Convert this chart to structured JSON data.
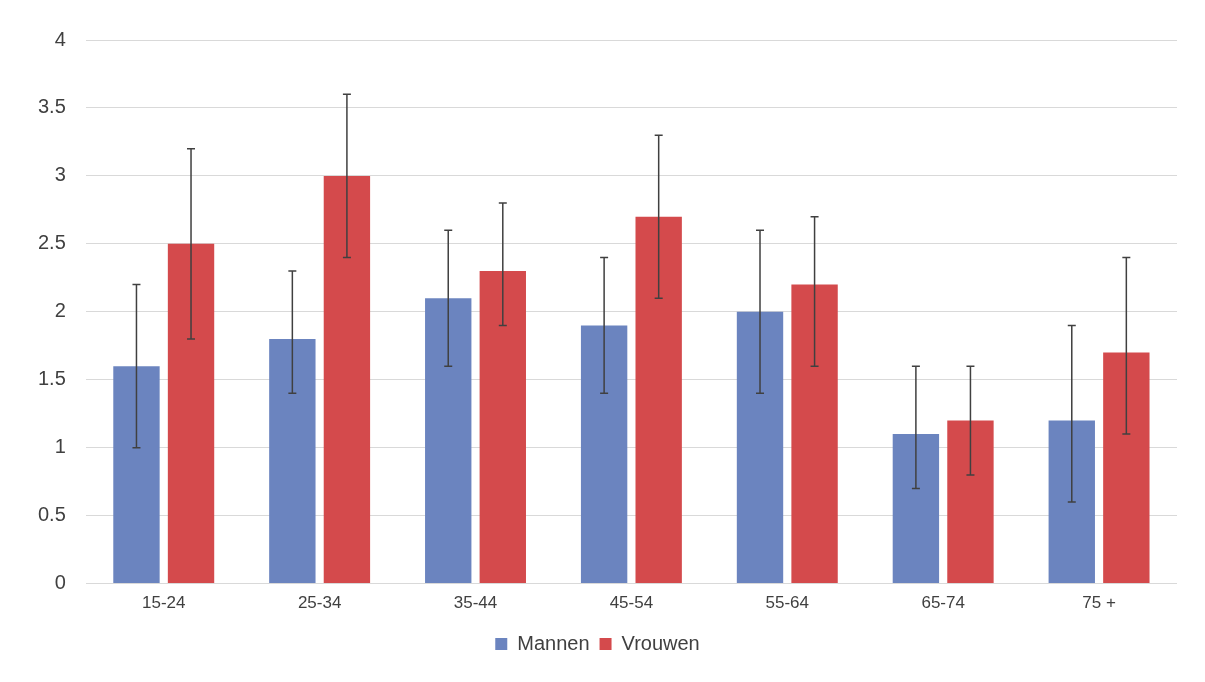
{
  "chart_data": {
    "type": "bar",
    "categories": [
      "15-24",
      "25-34",
      "35-44",
      "45-54",
      "55-64",
      "65-74",
      "75 +"
    ],
    "series": [
      {
        "name": "Mannen",
        "color": "#6b84bf",
        "values": [
          1.6,
          1.8,
          2.1,
          1.9,
          2.0,
          1.1,
          1.2
        ],
        "errors": [
          [
            1.0,
            2.2
          ],
          [
            1.4,
            2.3
          ],
          [
            1.6,
            2.6
          ],
          [
            1.4,
            2.4
          ],
          [
            1.4,
            2.6
          ],
          [
            0.7,
            1.6
          ],
          [
            0.6,
            1.9
          ]
        ]
      },
      {
        "name": "Vrouwen",
        "color": "#d44a4c",
        "values": [
          2.5,
          3.0,
          2.3,
          2.7,
          2.2,
          1.2,
          1.7
        ],
        "errors": [
          [
            1.8,
            3.2
          ],
          [
            2.4,
            3.6
          ],
          [
            1.9,
            2.8
          ],
          [
            2.1,
            3.3
          ],
          [
            1.6,
            2.7
          ],
          [
            0.8,
            1.6
          ],
          [
            1.1,
            2.4
          ]
        ]
      }
    ],
    "ylim": [
      0,
      4
    ],
    "yticks": [
      0,
      0.5,
      1,
      1.5,
      2,
      2.5,
      3,
      3.5,
      4
    ],
    "grid": "y",
    "legend": "bottom"
  }
}
